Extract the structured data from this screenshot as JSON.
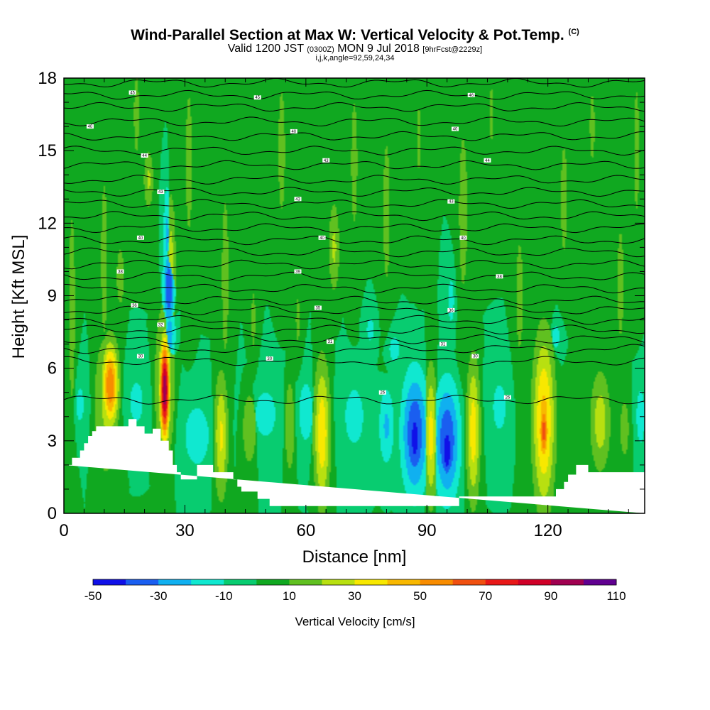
{
  "title": {
    "main": "Wind-Parallel Section at Max W: Vertical Velocity & Pot.Temp.",
    "main_suffix": "(C)",
    "valid_prefix": "Valid 1200 JST",
    "valid_utc": "(0300Z)",
    "valid_date": "MON 9 Jul 2018",
    "forecast": "[9hrFcst@2229z]",
    "params": "i,j,k,angle=92,59,24,34"
  },
  "chart_data": {
    "type": "heatmap",
    "xlabel": "Distance [nm]",
    "ylabel": "Height [Kft MSL]",
    "xlim": [
      0,
      144
    ],
    "ylim": [
      0,
      18
    ],
    "xticks": [
      0,
      30,
      60,
      90,
      120
    ],
    "yticks": [
      0,
      3,
      6,
      9,
      12,
      15,
      18
    ],
    "colorbar": {
      "title": "Vertical Velocity [cm/s]",
      "levels": [
        -50,
        -40,
        -30,
        -20,
        -10,
        0,
        10,
        20,
        30,
        40,
        50,
        60,
        70,
        80,
        90,
        100,
        110
      ],
      "tick_labels": [
        "-50",
        "-30",
        "-10",
        "10",
        "30",
        "50",
        "70",
        "90",
        "110"
      ],
      "colors": [
        "#1010e8",
        "#1a5ef0",
        "#10b0f0",
        "#10e8d0",
        "#08cc70",
        "#10a820",
        "#60c020",
        "#b8e010",
        "#f8e800",
        "#f8b800",
        "#f88c00",
        "#f05010",
        "#e81818",
        "#d00028",
        "#a00050",
        "#600090"
      ]
    },
    "background_level": 0,
    "terrain": [
      [
        0,
        2
      ],
      [
        2,
        2
      ],
      [
        2,
        2.3
      ],
      [
        4,
        2.3
      ],
      [
        4,
        2.6
      ],
      [
        5,
        2.6
      ],
      [
        5,
        2.9
      ],
      [
        6,
        2.9
      ],
      [
        6,
        3.2
      ],
      [
        7,
        3.2
      ],
      [
        7,
        3.4
      ],
      [
        8,
        3.4
      ],
      [
        8,
        3.6
      ],
      [
        16,
        3.6
      ],
      [
        16,
        3.9
      ],
      [
        18,
        3.9
      ],
      [
        18,
        3.6
      ],
      [
        20,
        3.6
      ],
      [
        20,
        3.3
      ],
      [
        22,
        3.3
      ],
      [
        22,
        3.5
      ],
      [
        24,
        3.5
      ],
      [
        24,
        3.0
      ],
      [
        26,
        3.0
      ],
      [
        26,
        2.6
      ],
      [
        27,
        2.6
      ],
      [
        27,
        2.0
      ],
      [
        28,
        2.0
      ],
      [
        28,
        1.7
      ],
      [
        29,
        1.7
      ],
      [
        29,
        1.4
      ],
      [
        33,
        1.4
      ],
      [
        33,
        2.0
      ],
      [
        37,
        2.0
      ],
      [
        37,
        1.7
      ],
      [
        42,
        1.7
      ],
      [
        42,
        1.4
      ],
      [
        43,
        1.4
      ],
      [
        43,
        1.1
      ],
      [
        44,
        1.1
      ],
      [
        44,
        0.9
      ],
      [
        48,
        0.9
      ],
      [
        48,
        0.6
      ],
      [
        51,
        0.6
      ],
      [
        51,
        0.3
      ],
      [
        98,
        0.3
      ],
      [
        98,
        0.7
      ],
      [
        122,
        0.7
      ],
      [
        122,
        1.0
      ],
      [
        124,
        1.0
      ],
      [
        124,
        1.3
      ],
      [
        125,
        1.3
      ],
      [
        125,
        1.6
      ],
      [
        127,
        1.6
      ],
      [
        127,
        2.0
      ],
      [
        130,
        2.0
      ],
      [
        130,
        1.7
      ],
      [
        144,
        1.7
      ],
      [
        144,
        0
      ]
    ],
    "cells": [
      {
        "x": 11.5,
        "y": 5.3,
        "sx": 1.4,
        "sy": 1.2,
        "v": 60
      },
      {
        "x": 10.5,
        "y": 4.5,
        "sx": 2.3,
        "sy": 2.2,
        "v": 22
      },
      {
        "x": 25,
        "y": 5.1,
        "sx": 0.8,
        "sy": 1.4,
        "v": 100
      },
      {
        "x": 25,
        "y": 5.4,
        "sx": 1.6,
        "sy": 2.2,
        "v": 32
      },
      {
        "x": 26.5,
        "y": 10.2,
        "sx": 0.9,
        "sy": 2.2,
        "v": 25
      },
      {
        "x": 26,
        "y": 9.3,
        "sx": 1.0,
        "sy": 1.1,
        "v": -40
      },
      {
        "x": 25.6,
        "y": 11.5,
        "sx": 0.7,
        "sy": 1.6,
        "v": -22
      },
      {
        "x": 26.2,
        "y": 7.4,
        "sx": 1.1,
        "sy": 0.9,
        "v": -25
      },
      {
        "x": 21,
        "y": 13.8,
        "sx": 0.9,
        "sy": 0.9,
        "v": 22
      },
      {
        "x": 14,
        "y": 9.8,
        "sx": 0.8,
        "sy": 1.0,
        "v": 18
      },
      {
        "x": 39,
        "y": 3.2,
        "sx": 1.2,
        "sy": 1.8,
        "v": 32
      },
      {
        "x": 46,
        "y": 3.5,
        "sx": 1.6,
        "sy": 1.4,
        "v": 16
      },
      {
        "x": 64,
        "y": 3.3,
        "sx": 1.4,
        "sy": 2.1,
        "v": 38
      },
      {
        "x": 67,
        "y": 11.0,
        "sx": 1.0,
        "sy": 1.4,
        "v": 22
      },
      {
        "x": 56,
        "y": 3.6,
        "sx": 1.0,
        "sy": 1.6,
        "v": 18
      },
      {
        "x": 87,
        "y": 3.3,
        "sx": 2.3,
        "sy": 1.8,
        "v": -40
      },
      {
        "x": 87,
        "y": 3.1,
        "sx": 1.0,
        "sy": 1.0,
        "v": -50
      },
      {
        "x": 95,
        "y": 3.0,
        "sx": 2.2,
        "sy": 1.7,
        "v": -40
      },
      {
        "x": 95,
        "y": 2.6,
        "sx": 1.0,
        "sy": 0.9,
        "v": -52
      },
      {
        "x": 91,
        "y": 3.2,
        "sx": 1.1,
        "sy": 2.0,
        "v": 34
      },
      {
        "x": 101.5,
        "y": 3.4,
        "sx": 1.2,
        "sy": 2.1,
        "v": 36
      },
      {
        "x": 80,
        "y": 3.6,
        "sx": 1.4,
        "sy": 1.2,
        "v": -22
      },
      {
        "x": 119,
        "y": 3.8,
        "sx": 1.9,
        "sy": 2.5,
        "v": 44
      },
      {
        "x": 119,
        "y": 3.4,
        "sx": 0.9,
        "sy": 1.0,
        "v": 65
      },
      {
        "x": 133,
        "y": 3.8,
        "sx": 1.8,
        "sy": 1.5,
        "v": 26
      },
      {
        "x": 139,
        "y": 3.5,
        "sx": 1.2,
        "sy": 1.3,
        "v": 14
      },
      {
        "x": 143,
        "y": 4.0,
        "sx": 1.2,
        "sy": 1.3,
        "v": -14
      },
      {
        "x": 18,
        "y": 4.6,
        "sx": 2.5,
        "sy": 1.3,
        "v": -12
      },
      {
        "x": 33,
        "y": 3.2,
        "sx": 3.5,
        "sy": 1.4,
        "v": -14
      },
      {
        "x": 50,
        "y": 4.1,
        "sx": 4.0,
        "sy": 1.5,
        "v": -12
      },
      {
        "x": 60,
        "y": 4.2,
        "sx": 2.0,
        "sy": 1.4,
        "v": -14
      },
      {
        "x": 72,
        "y": 4.0,
        "sx": 3.0,
        "sy": 1.5,
        "v": -13
      },
      {
        "x": 76,
        "y": 7.6,
        "sx": 1.4,
        "sy": 0.7,
        "v": -12
      },
      {
        "x": 82,
        "y": 6.8,
        "sx": 2.0,
        "sy": 0.8,
        "v": -12
      },
      {
        "x": 96,
        "y": 8.8,
        "sx": 1.1,
        "sy": 1.4,
        "v": -12
      },
      {
        "x": 108,
        "y": 4.4,
        "sx": 2.5,
        "sy": 1.5,
        "v": -12
      },
      {
        "x": 122,
        "y": 7.3,
        "sx": 1.6,
        "sy": 0.7,
        "v": -12
      },
      {
        "x": 4,
        "y": 4.5,
        "sx": 2.0,
        "sy": 1.5,
        "v": -11
      },
      {
        "x": 2,
        "y": 8.5,
        "sx": 1.2,
        "sy": 6.0,
        "v": 12
      },
      {
        "x": 10,
        "y": 10.5,
        "sx": 1.2,
        "sy": 5.0,
        "v": 12
      },
      {
        "x": 18,
        "y": 16.5,
        "sx": 1.0,
        "sy": 2.5,
        "v": 12
      },
      {
        "x": 31,
        "y": 14.5,
        "sx": 1.2,
        "sy": 4.5,
        "v": 12
      },
      {
        "x": 40,
        "y": 9.8,
        "sx": 1.3,
        "sy": 5.0,
        "v": 12
      },
      {
        "x": 47,
        "y": 8.0,
        "sx": 1.0,
        "sy": 2.5,
        "v": 11
      },
      {
        "x": 54,
        "y": 15.0,
        "sx": 1.3,
        "sy": 4.0,
        "v": 12
      },
      {
        "x": 58,
        "y": 8.0,
        "sx": 1.0,
        "sy": 2.0,
        "v": 11
      },
      {
        "x": 72,
        "y": 14.5,
        "sx": 1.2,
        "sy": 4.0,
        "v": 12
      },
      {
        "x": 80,
        "y": 12.5,
        "sx": 1.3,
        "sy": 4.5,
        "v": 12
      },
      {
        "x": 88,
        "y": 15.5,
        "sx": 1.0,
        "sy": 3.0,
        "v": 11
      },
      {
        "x": 99,
        "y": 12.5,
        "sx": 1.6,
        "sy": 5.0,
        "v": 12
      },
      {
        "x": 106,
        "y": 16.5,
        "sx": 1.0,
        "sy": 2.5,
        "v": 11
      },
      {
        "x": 113,
        "y": 9.0,
        "sx": 1.3,
        "sy": 3.5,
        "v": 12
      },
      {
        "x": 124,
        "y": 13.0,
        "sx": 1.2,
        "sy": 3.5,
        "v": 12
      },
      {
        "x": 131,
        "y": 16.0,
        "sx": 1.3,
        "sy": 3.0,
        "v": 11
      },
      {
        "x": 138,
        "y": 9.5,
        "sx": 1.2,
        "sy": 3.5,
        "v": 12
      },
      {
        "x": 142,
        "y": 15.0,
        "sx": 1.0,
        "sy": 4.0,
        "v": 12
      }
    ],
    "theta_isolines": {
      "levels": [
        26,
        27,
        28,
        29,
        30,
        31,
        32,
        33,
        34,
        35,
        36,
        37,
        38,
        39,
        40,
        41,
        42,
        43,
        44,
        45,
        46,
        47,
        48,
        49,
        50
      ],
      "heights": [
        4.7,
        6.3,
        6.8,
        7.2,
        7.6,
        8.0,
        8.4,
        8.8,
        9.3,
        9.8,
        10.3,
        10.8,
        11.3,
        11.8,
        12.3,
        12.8,
        13.3,
        13.8,
        14.4,
        15.0,
        15.6,
        16.2,
        16.8,
        17.3,
        17.8
      ]
    },
    "isoline_labels": [
      {
        "x": 17,
        "y": 17.4,
        "text": "45"
      },
      {
        "x": 48,
        "y": 17.2,
        "text": "45"
      },
      {
        "x": 101,
        "y": 17.3,
        "text": "46"
      },
      {
        "x": 6.5,
        "y": 16.0,
        "text": "40"
      },
      {
        "x": 57,
        "y": 15.8,
        "text": "40"
      },
      {
        "x": 97,
        "y": 15.9,
        "text": "40"
      },
      {
        "x": 20,
        "y": 14.8,
        "text": "44"
      },
      {
        "x": 65,
        "y": 14.6,
        "text": "43"
      },
      {
        "x": 105,
        "y": 14.6,
        "text": "44"
      },
      {
        "x": 24,
        "y": 13.3,
        "text": "43"
      },
      {
        "x": 58,
        "y": 13.0,
        "text": "43"
      },
      {
        "x": 96,
        "y": 12.9,
        "text": "43"
      },
      {
        "x": 19,
        "y": 11.4,
        "text": "40"
      },
      {
        "x": 64,
        "y": 11.4,
        "text": "40"
      },
      {
        "x": 99,
        "y": 11.4,
        "text": "40"
      },
      {
        "x": 14,
        "y": 10.0,
        "text": "38"
      },
      {
        "x": 58,
        "y": 10.0,
        "text": "39"
      },
      {
        "x": 108,
        "y": 9.8,
        "text": "38"
      },
      {
        "x": 17.5,
        "y": 8.6,
        "text": "36"
      },
      {
        "x": 63,
        "y": 8.5,
        "text": "35"
      },
      {
        "x": 96,
        "y": 8.4,
        "text": "36"
      },
      {
        "x": 24,
        "y": 7.8,
        "text": "32"
      },
      {
        "x": 66,
        "y": 7.1,
        "text": "31"
      },
      {
        "x": 94,
        "y": 7.0,
        "text": "31"
      },
      {
        "x": 19,
        "y": 6.5,
        "text": "30"
      },
      {
        "x": 51,
        "y": 6.4,
        "text": "30"
      },
      {
        "x": 102,
        "y": 6.5,
        "text": "30"
      },
      {
        "x": 79,
        "y": 5.0,
        "text": "26"
      },
      {
        "x": 110,
        "y": 4.8,
        "text": "26"
      }
    ]
  }
}
